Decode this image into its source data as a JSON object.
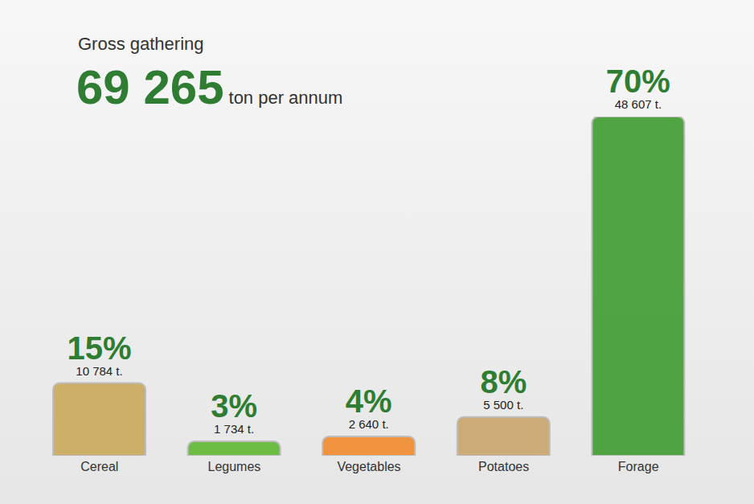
{
  "chart_data": {
    "type": "bar",
    "title": "Gross gathering",
    "annotations": [
      "69 265",
      "ton per annum"
    ],
    "categories": [
      "Cereal",
      "Legumes",
      "Vegetables",
      "Potatoes",
      "Forage"
    ],
    "values": [
      15,
      3,
      4,
      8,
      70
    ],
    "value_labels": [
      "15%",
      "3%",
      "4%",
      "8%",
      "70%"
    ],
    "tonnes": [
      10784,
      1734,
      2640,
      5500,
      48607
    ],
    "tonnes_labels": [
      "10 784 t.",
      "1 734 t.",
      "2 640 t.",
      "5 500 t.",
      "48 607 t."
    ],
    "colors": [
      "#c9a85a",
      "#5fb832",
      "#f08a2c",
      "#c8a46a",
      "#3f9b2f"
    ],
    "ylim": [
      0,
      70
    ],
    "data_labels": true,
    "tick_labels": "x",
    "grid": false
  }
}
